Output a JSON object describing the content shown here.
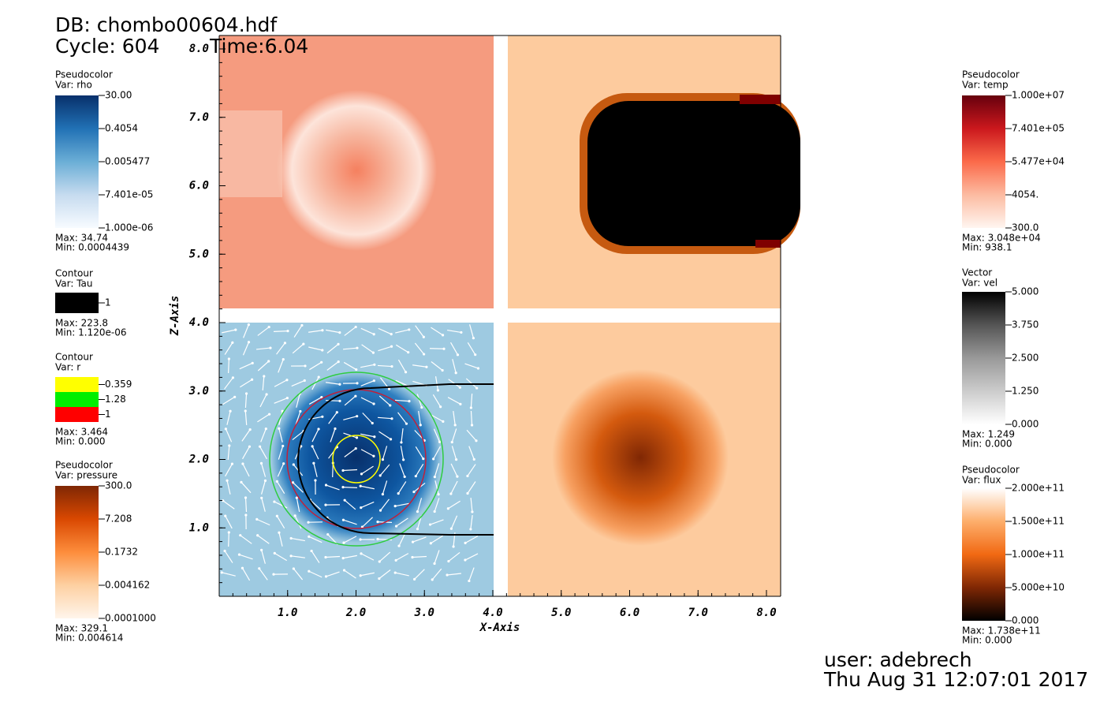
{
  "header": {
    "db": "DB: chombo00604.hdf",
    "cycle": "Cycle: 604",
    "time": "Time:6.04"
  },
  "axes": {
    "x_label": "X-Axis",
    "z_label": "Z-Axis",
    "xticks": [
      "1.0",
      "2.0",
      "3.0",
      "4.0",
      "5.0",
      "6.0",
      "7.0",
      "8.0"
    ],
    "zticks": [
      "1.0",
      "2.0",
      "3.0",
      "4.0",
      "5.0",
      "6.0",
      "7.0",
      "8.0"
    ]
  },
  "legends": [
    {
      "kind": "Pseudocolor",
      "var": "Var: rho",
      "ticks": [
        "30.00",
        "0.4054",
        "0.005477",
        "7.401e-05",
        "1.000e-06"
      ],
      "max": "Max:  34.74",
      "min": "Min:  0.0004439"
    },
    {
      "kind": "Contour",
      "var": "Var: Tau",
      "ticks": [
        "1"
      ],
      "max": "Max:  223.8",
      "min": "Min:  1.120e-06"
    },
    {
      "kind": "Contour",
      "var": "Var: r",
      "ticks": [
        "0.359",
        "1.28",
        "1"
      ],
      "max": "Max:  3.464",
      "min": "Min:  0.000"
    },
    {
      "kind": "Pseudocolor",
      "var": "Var: pressure",
      "ticks": [
        "300.0",
        "7.208",
        "0.1732",
        "0.004162",
        "0.0001000"
      ],
      "max": "Max:  329.1",
      "min": "Min:  0.004614"
    },
    {
      "kind": "Pseudocolor",
      "var": "Var: temp",
      "ticks": [
        "1.000e+07",
        "7.401e+05",
        "5.477e+04",
        "4054.",
        "300.0"
      ],
      "max": "Max:  3.048e+04",
      "min": "Min:  938.1"
    },
    {
      "kind": "Vector",
      "var": "Var: vel",
      "ticks": [
        "5.000",
        "3.750",
        "2.500",
        "1.250",
        "0.000"
      ],
      "max": "Max:  1.249",
      "min": "Min:  0.000"
    },
    {
      "kind": "Pseudocolor",
      "var": "Var: flux",
      "ticks": [
        "2.000e+11",
        "1.500e+11",
        "1.000e+11",
        "5.000e+10",
        "0.000"
      ],
      "max": "Max:  1.738e+11",
      "min": "Min:  0.000"
    }
  ],
  "footer": {
    "user": "user: adebrech",
    "date": "Thu Aug 31 12:07:01 2017"
  }
}
